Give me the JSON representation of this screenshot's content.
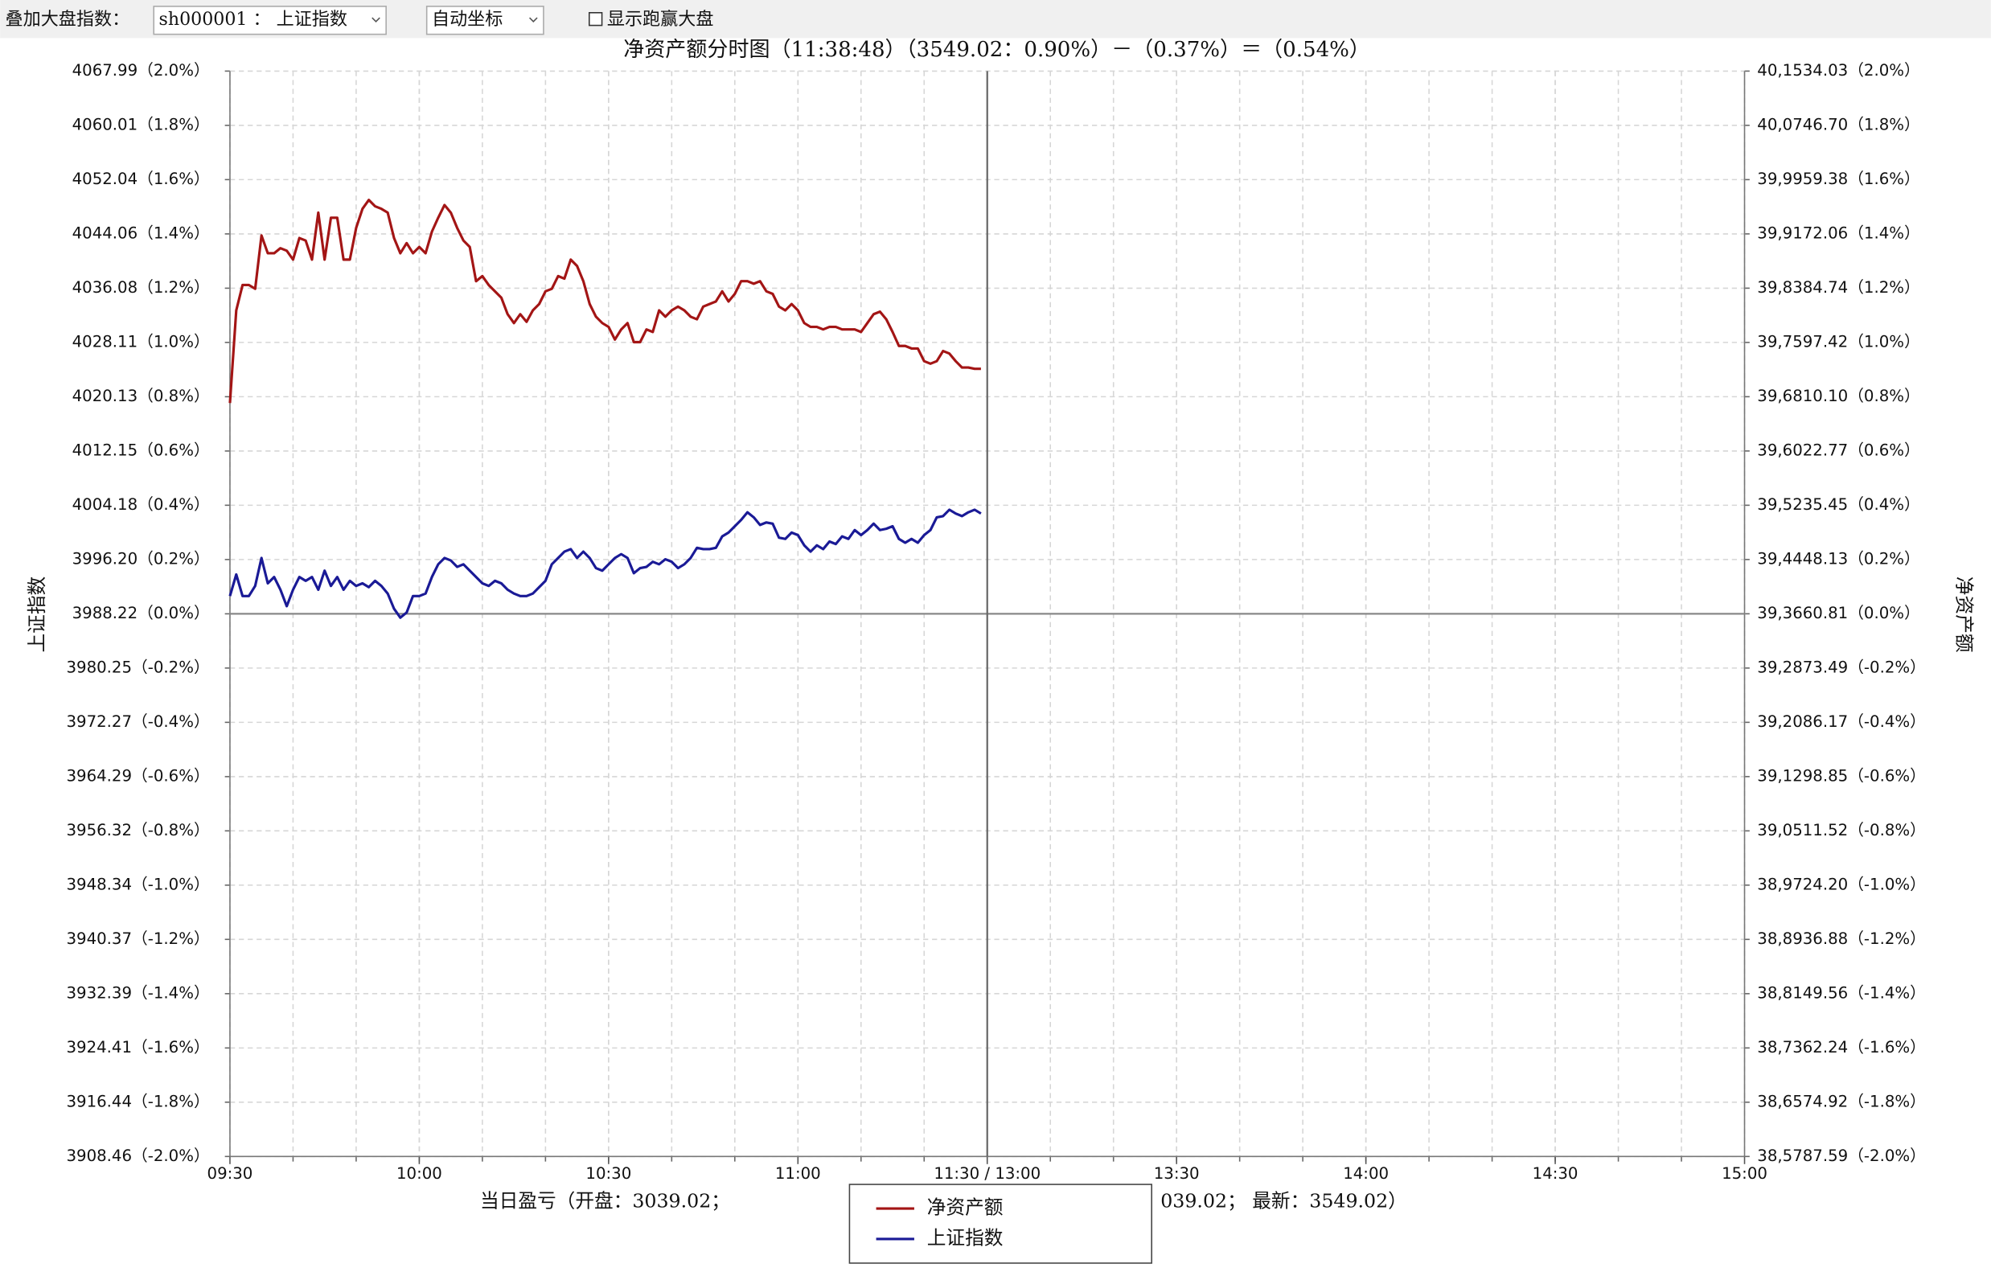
{
  "controls": {
    "overlay_label": "叠加大盘指数：",
    "index_select": "sh000001 ： 上证指数",
    "scale_select": "自动坐标",
    "outperform_checkbox": "显示跑赢大盘"
  },
  "chart_data": {
    "type": "line",
    "title": "净资产额分时图（11:38:48）（3549.02：0.90%）－（0.37%）＝（0.54%）",
    "ylabel": "上证指数",
    "y2label": "净资产额",
    "footer_left": "当日盈亏（开盘：3039.02；",
    "footer_right": "039.02；  最新：3549.02）",
    "grid": true,
    "xlim": [
      0,
      240
    ],
    "xticks": [
      {
        "value": 0,
        "label": "09:30"
      },
      {
        "value": 30,
        "label": "10:00"
      },
      {
        "value": 60,
        "label": "10:30"
      },
      {
        "value": 90,
        "label": "11:00"
      },
      {
        "value": 120,
        "label": "11:30 / 13:00"
      },
      {
        "value": 150,
        "label": "13:30"
      },
      {
        "value": 180,
        "label": "14:00"
      },
      {
        "value": 210,
        "label": "14:30"
      },
      {
        "value": 240,
        "label": "15:00"
      }
    ],
    "ylim": [
      3908.46,
      4067.99
    ],
    "yticks": [
      {
        "value": 4067.99,
        "label": "4067.99（2.0%）"
      },
      {
        "value": 4060.01,
        "label": "4060.01（1.8%）"
      },
      {
        "value": 4052.04,
        "label": "4052.04（1.6%）"
      },
      {
        "value": 4044.06,
        "label": "4044.06（1.4%）"
      },
      {
        "value": 4036.08,
        "label": "4036.08（1.2%）"
      },
      {
        "value": 4028.11,
        "label": "4028.11（1.0%）"
      },
      {
        "value": 4020.13,
        "label": "4020.13（0.8%）"
      },
      {
        "value": 4012.15,
        "label": "4012.15（0.6%）"
      },
      {
        "value": 4004.18,
        "label": "4004.18（0.4%）"
      },
      {
        "value": 3996.2,
        "label": "3996.20（0.2%）"
      },
      {
        "value": 3988.22,
        "label": "3988.22（0.0%）"
      },
      {
        "value": 3980.25,
        "label": "3980.25（-0.2%）"
      },
      {
        "value": 3972.27,
        "label": "3972.27（-0.4%）"
      },
      {
        "value": 3964.29,
        "label": "3964.29（-0.6%）"
      },
      {
        "value": 3956.32,
        "label": "3956.32（-0.8%）"
      },
      {
        "value": 3948.34,
        "label": "3948.34（-1.0%）"
      },
      {
        "value": 3940.37,
        "label": "3940.37（-1.2%）"
      },
      {
        "value": 3932.39,
        "label": "3932.39（-1.4%）"
      },
      {
        "value": 3924.41,
        "label": "3924.41（-1.6%）"
      },
      {
        "value": 3916.44,
        "label": "3916.44（-1.8%）"
      },
      {
        "value": 3908.46,
        "label": "3908.46（-2.0%）"
      }
    ],
    "y2lim": [
      385787.59,
      401534.03
    ],
    "y2ticks": [
      {
        "value": 401534.03,
        "label": "40,1534.03（2.0%）"
      },
      {
        "value": 400746.7,
        "label": "40,0746.70（1.8%）"
      },
      {
        "value": 399959.38,
        "label": "39,9959.38（1.6%）"
      },
      {
        "value": 399172.06,
        "label": "39,9172.06（1.4%）"
      },
      {
        "value": 398384.74,
        "label": "39,8384.74（1.2%）"
      },
      {
        "value": 397597.42,
        "label": "39,7597.42（1.0%）"
      },
      {
        "value": 396810.1,
        "label": "39,6810.10（0.8%）"
      },
      {
        "value": 396022.77,
        "label": "39,6022.77（0.6%）"
      },
      {
        "value": 395235.45,
        "label": "39,5235.45（0.4%）"
      },
      {
        "value": 394448.13,
        "label": "39,4448.13（0.2%）"
      },
      {
        "value": 393660.81,
        "label": "39,3660.81（0.0%）"
      },
      {
        "value": 392873.49,
        "label": "39,2873.49（-0.2%）"
      },
      {
        "value": 392086.17,
        "label": "39,2086.17（-0.4%）"
      },
      {
        "value": 391298.85,
        "label": "39,1298.85（-0.6%）"
      },
      {
        "value": 390511.52,
        "label": "39,0511.52（-0.8%）"
      },
      {
        "value": 389724.2,
        "label": "38,9724.20（-1.0%）"
      },
      {
        "value": 388936.88,
        "label": "38,8936.88（-1.2%）"
      },
      {
        "value": 388149.56,
        "label": "38,8149.56（-1.4%）"
      },
      {
        "value": 387362.24,
        "label": "38,7362.24（-1.6%）"
      },
      {
        "value": 386574.92,
        "label": "38,6574.92（-1.8%）"
      },
      {
        "value": 385787.59,
        "label": "38,5787.59（-2.0%）"
      }
    ],
    "x": [
      0,
      1,
      2,
      3,
      4,
      5,
      6,
      7,
      8,
      9,
      10,
      11,
      12,
      13,
      14,
      15,
      16,
      17,
      18,
      19,
      20,
      21,
      22,
      23,
      24,
      25,
      26,
      27,
      28,
      29,
      30,
      31,
      32,
      33,
      34,
      35,
      36,
      37,
      38,
      39,
      40,
      41,
      42,
      43,
      44,
      45,
      46,
      47,
      48,
      49,
      50,
      51,
      52,
      53,
      54,
      55,
      56,
      57,
      58,
      59,
      60,
      61,
      62,
      63,
      64,
      65,
      66,
      67,
      68,
      69,
      70,
      71,
      72,
      73,
      74,
      75,
      76,
      77,
      78,
      79,
      80,
      81,
      82,
      83,
      84,
      85,
      86,
      87,
      88,
      89,
      90,
      91,
      92,
      93,
      94,
      95,
      96,
      97,
      98,
      99,
      100,
      101,
      102,
      103,
      104,
      105,
      106,
      107,
      108,
      109,
      110,
      111,
      112,
      113,
      114,
      115,
      116,
      117,
      118,
      119
    ],
    "series": [
      {
        "name": "净资产额",
        "color": "#a31515",
        "axis": "y2",
        "values": [
          396718.0,
          398062.5,
          398430.8,
          398430.8,
          398375.6,
          399149.1,
          398891.2,
          398891.2,
          398964.9,
          398928.1,
          398799.1,
          399112.2,
          399075.4,
          398799.1,
          399480.6,
          398799.1,
          399406.9,
          399406.9,
          398799.1,
          398799.1,
          399259.6,
          399535.8,
          399664.7,
          399572.7,
          399535.8,
          399480.6,
          399112.2,
          398891.2,
          399038.6,
          398891.2,
          398983.3,
          398891.2,
          399204.3,
          399406.9,
          399591.1,
          399480.6,
          399259.6,
          399075.4,
          398983.3,
          398486.1,
          398559.7,
          398430.8,
          398338.7,
          398246.6,
          398007.2,
          397878.3,
          398007.2,
          397896.7,
          398062.5,
          398154.5,
          398338.7,
          398375.6,
          398559.7,
          398522.9,
          398799.1,
          398707.1,
          398486.1,
          398154.5,
          397970.4,
          397878.3,
          397823.0,
          397638.9,
          397786.2,
          397878.3,
          397602.0,
          397602.0,
          397786.2,
          397749.4,
          398062.5,
          397970.4,
          398062.5,
          398117.7,
          398062.5,
          397970.4,
          397933.5,
          398117.7,
          398154.5,
          398191.4,
          398338.7,
          398191.4,
          398301.9,
          398486.1,
          398486.1,
          398449.2,
          398486.1,
          398338.7,
          398301.9,
          398117.7,
          398062.5,
          398154.5,
          398062.5,
          397878.3,
          397823.0,
          397823.0,
          397786.2,
          397823.0,
          397823.0,
          397786.2,
          397786.2,
          397786.2,
          397749.4,
          397878.3,
          398007.2,
          398044.0,
          397933.5,
          397749.4,
          397546.8,
          397546.8,
          397510.0,
          397510.0,
          397325.8,
          397288.9,
          397325.8,
          397473.1,
          397436.3,
          397325.8,
          397233.7,
          397233.7,
          397215.3,
          397215.3
        ]
      },
      {
        "name": "上证指数",
        "color": "#1a1a96",
        "values": [
          3990.83,
          3994.0,
          3990.83,
          3990.83,
          3992.32,
          3996.43,
          3992.7,
          3993.63,
          3991.76,
          3989.34,
          3991.76,
          3993.63,
          3993.07,
          3993.63,
          3991.76,
          3994.56,
          3992.32,
          3993.63,
          3991.76,
          3993.07,
          3992.32,
          3992.7,
          3992.14,
          3993.07,
          3992.32,
          3991.2,
          3988.97,
          3987.66,
          3988.41,
          3990.83,
          3990.83,
          3991.2,
          3993.63,
          3995.5,
          3996.43,
          3996.06,
          3995.12,
          3995.5,
          3994.56,
          3993.63,
          3992.7,
          3992.32,
          3993.07,
          3992.7,
          3991.76,
          3991.2,
          3990.83,
          3990.83,
          3991.2,
          3992.14,
          3993.07,
          3995.5,
          3996.43,
          3997.36,
          3997.73,
          3996.43,
          3997.36,
          3996.43,
          3994.94,
          3994.56,
          3995.5,
          3996.43,
          3996.99,
          3996.43,
          3994.19,
          3994.94,
          3995.12,
          3995.87,
          3995.5,
          3996.24,
          3995.87,
          3994.94,
          3995.5,
          3996.43,
          3997.92,
          3997.73,
          3997.73,
          3997.92,
          3999.6,
          4000.16,
          4001.09,
          4002.02,
          4003.14,
          4002.4,
          4001.28,
          4001.65,
          4001.47,
          3999.41,
          3999.23,
          4000.16,
          3999.79,
          3998.29,
          3997.36,
          3998.29,
          3997.73,
          3998.85,
          3998.48,
          3999.6,
          3999.23,
          4000.53,
          3999.79,
          4000.53,
          4001.47,
          4000.53,
          4000.72,
          4001.09,
          3999.23,
          3998.67,
          3999.23,
          3998.67,
          3999.79,
          4000.53,
          4002.4,
          4002.58,
          4003.52,
          4002.96,
          4002.58,
          4003.14,
          4003.52,
          4002.96
        ]
      }
    ]
  }
}
